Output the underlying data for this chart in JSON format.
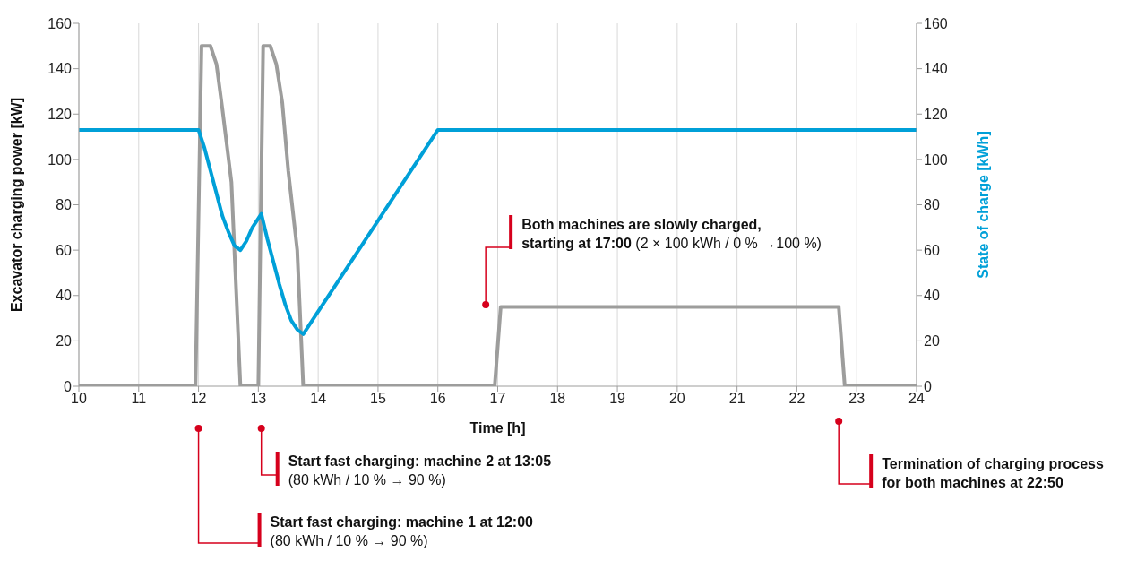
{
  "chart_data": {
    "type": "line",
    "xlabel": "Time [h]",
    "ylabel": "Excavator charging power [kW]",
    "y2label": "State of charge [kWh]",
    "xlim": [
      10,
      24
    ],
    "xticks": [
      10,
      11,
      12,
      13,
      14,
      15,
      16,
      17,
      18,
      19,
      20,
      21,
      22,
      23,
      24
    ],
    "ylim": [
      0,
      160
    ],
    "yticks": [
      0,
      20,
      40,
      60,
      80,
      100,
      120,
      140,
      160
    ],
    "y2lim": [
      0,
      160
    ],
    "y2ticks": [
      0,
      20,
      40,
      60,
      80,
      100,
      120,
      140,
      160
    ],
    "grid": "x",
    "marker": "none",
    "line_style": "solid",
    "series": [
      {
        "color": "#9d9d9c",
        "x": [
          10,
          11.95,
          12.05,
          12.2,
          12.3,
          12.4,
          12.55,
          12.7,
          13.0,
          13.08,
          13.2,
          13.3,
          13.4,
          13.5,
          13.65,
          13.75,
          16.95,
          17.05,
          22.7,
          22.8,
          24
        ],
        "values": [
          0,
          0,
          150,
          150,
          142,
          122,
          90,
          0,
          0,
          150,
          150,
          142,
          125,
          95,
          60,
          0,
          0,
          35,
          35,
          0,
          0
        ]
      },
      {
        "color": "#00a0d8",
        "axis": "y2",
        "x": [
          10,
          12,
          12.1,
          12.2,
          12.3,
          12.4,
          12.5,
          12.6,
          12.7,
          12.8,
          12.9,
          13.05,
          13.15,
          13.25,
          13.35,
          13.45,
          13.55,
          13.65,
          13.75,
          16,
          24
        ],
        "values": [
          113,
          113,
          105,
          95,
          85,
          75,
          68,
          62,
          60,
          64,
          70,
          76,
          65,
          55,
          45,
          36,
          29,
          25,
          23,
          113,
          113
        ]
      }
    ],
    "annotations": [
      {
        "text": "Both machines are slowly charged,\nstarting at 17:00 (2 × 100 kWh / 0 % →100 %)",
        "x": 16.8,
        "y": 36
      },
      "Start fast charging: machine 2 at 13:05\n(80 kWh / 10 % → 90 %)",
      "Start fast charging: machine 1 at 12:00\n(80 kWh / 10 % → 90 %)",
      "Termination of charging process\nfor both machines at 22:50"
    ]
  }
}
